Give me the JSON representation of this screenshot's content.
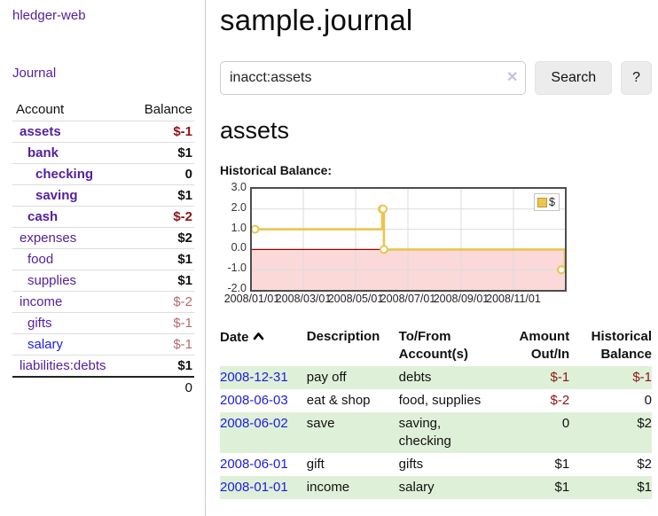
{
  "colors": {
    "link_purple": "#55219b",
    "link_blue": "#1c1cdf",
    "negative_strong": "#8b1515",
    "negative_soft": "#b36a6a",
    "row_green": "#dff0d8",
    "chart_line": "#eac54f",
    "chart_negative_fill": "#fbd9d9",
    "chart_zero_line": "#990000",
    "chart_grid": "#dcdcdc",
    "chart_border": "#4d4d4d"
  },
  "sidebar": {
    "brand": "hledger-web",
    "journal_link": "Journal",
    "accounts": {
      "headers": {
        "account": "Account",
        "balance": "Balance"
      },
      "rows": [
        {
          "account": "assets",
          "balance": "$-1",
          "depth": 1,
          "bold": true,
          "negative": "strong"
        },
        {
          "account": "bank",
          "balance": "$1",
          "depth": 2,
          "bold": true,
          "negative": "none"
        },
        {
          "account": "checking",
          "balance": "0",
          "depth": 3,
          "bold": true,
          "negative": "none"
        },
        {
          "account": "saving",
          "balance": "$1",
          "depth": 3,
          "bold": true,
          "negative": "none"
        },
        {
          "account": "cash",
          "balance": "$-2",
          "depth": 2,
          "bold": true,
          "negative": "strong"
        },
        {
          "account": "expenses",
          "balance": "$2",
          "depth": 1,
          "bold": false,
          "negative": "none"
        },
        {
          "account": "food",
          "balance": "$1",
          "depth": 2,
          "bold": false,
          "negative": "none"
        },
        {
          "account": "supplies",
          "balance": "$1",
          "depth": 2,
          "bold": false,
          "negative": "none"
        },
        {
          "account": "income",
          "balance": "$-2",
          "depth": 1,
          "bold": false,
          "negative": "soft"
        },
        {
          "account": "gifts",
          "balance": "$-1",
          "depth": 2,
          "bold": false,
          "negative": "soft"
        },
        {
          "account": "salary",
          "balance": "$-1",
          "depth": 2,
          "bold": false,
          "negative": "soft",
          "link_color": "blue"
        },
        {
          "account": "liabilities:debts",
          "balance": "$1",
          "depth": 1,
          "bold": false,
          "negative": "none"
        }
      ],
      "total": "0"
    }
  },
  "main": {
    "title": "sample.journal",
    "search": {
      "value": "inacct:assets",
      "clear_icon": "✕",
      "button_label": "Search",
      "help_label": "?"
    },
    "account_heading": "assets",
    "chart_label": "Historical Balance:"
  },
  "chart_data": {
    "type": "line",
    "step": "after",
    "series_name": "$",
    "legend": "$",
    "x_range_days": [
      0,
      365
    ],
    "points": [
      {
        "date": "2008-01-01",
        "day": 0,
        "value": 1
      },
      {
        "date": "2008-06-01",
        "day": 152,
        "value": 2
      },
      {
        "date": "2008-06-02",
        "day": 153,
        "value": 2
      },
      {
        "date": "2008-06-03",
        "day": 154,
        "value": 0
      },
      {
        "date": "2008-12-31",
        "day": 365,
        "value": -1
      }
    ],
    "ylim": [
      -2,
      3
    ],
    "yticks": [
      {
        "value": 3,
        "label": "3.0"
      },
      {
        "value": 2,
        "label": "2.0"
      },
      {
        "value": 1,
        "label": "1.0"
      },
      {
        "value": 0,
        "label": "0.0"
      },
      {
        "value": -1,
        "label": "-1.0"
      },
      {
        "value": -2,
        "label": "-2.0"
      }
    ],
    "xticks": [
      {
        "day": 0,
        "label": "2008/01/01"
      },
      {
        "day": 60,
        "label": "2008/03/01"
      },
      {
        "day": 121,
        "label": "2008/05/01"
      },
      {
        "day": 182,
        "label": "2008/07/01"
      },
      {
        "day": 244,
        "label": "2008/09/01"
      },
      {
        "day": 305,
        "label": "2008/11/01"
      }
    ],
    "grid": true,
    "legend_position": "top-right",
    "negative_region_shaded": true
  },
  "register": {
    "headers": {
      "date": "Date",
      "description": "Description",
      "accounts": "To/From Account(s)",
      "amount": "Amount Out/In",
      "balance": "Historical Balance"
    },
    "sort": {
      "column": "date",
      "direction": "ascending"
    },
    "rows": [
      {
        "date": "2008-12-31",
        "description": "pay off",
        "accounts": "debts",
        "amount": "$-1",
        "balance": "$-1"
      },
      {
        "date": "2008-06-03",
        "description": "eat & shop",
        "accounts": "food, supplies",
        "amount": "$-2",
        "balance": "0"
      },
      {
        "date": "2008-06-02",
        "description": "save",
        "accounts": "saving, checking",
        "amount": "0",
        "balance": "$2"
      },
      {
        "date": "2008-06-01",
        "description": "gift",
        "accounts": "gifts",
        "amount": "$1",
        "balance": "$2"
      },
      {
        "date": "2008-01-01",
        "description": "income",
        "accounts": "salary",
        "amount": "$1",
        "balance": "$1"
      }
    ]
  }
}
